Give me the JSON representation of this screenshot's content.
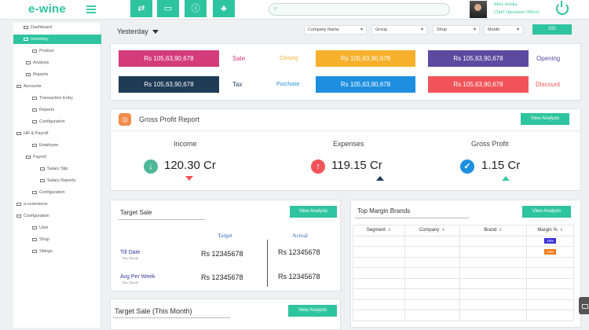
{
  "app": {
    "logo": "e-wine"
  },
  "topbar": {
    "search_placeholder": "",
    "user_name": "Miss Aviska",
    "user_role": "Chief Operation Officer",
    "icons": [
      "swap-icon",
      "monitor-icon",
      "info-icon",
      "bell-icon"
    ]
  },
  "sidebar": {
    "items": [
      {
        "label": "Dashboard"
      },
      {
        "label": "Inventory",
        "active": true
      },
      {
        "label": "Product"
      },
      {
        "label": "Analysis"
      },
      {
        "label": "Reports"
      },
      {
        "label": "Accounts"
      },
      {
        "label": "Transaction Entry"
      },
      {
        "label": "Reports"
      },
      {
        "label": "Configuration"
      },
      {
        "label": "HR & Payroll"
      },
      {
        "label": "Employee"
      },
      {
        "label": "Payroll"
      },
      {
        "label": "Salary Slip"
      },
      {
        "label": "Salary Reports"
      },
      {
        "label": "Configuration"
      },
      {
        "label": "e-commerce"
      },
      {
        "label": "Configuration"
      },
      {
        "label": "User"
      },
      {
        "label": "Shop"
      },
      {
        "label": "Sttings"
      }
    ]
  },
  "filters": {
    "period": "Yesterday",
    "company": "Company Name",
    "group": "Group",
    "shop": "Shop",
    "month": "Month",
    "go": "GO"
  },
  "kpis": [
    {
      "value": "Rs 105,63,90,678",
      "label": "Sale",
      "color": "#d43b7b"
    },
    {
      "value": "Rs 105,63,90,678",
      "label": "Closing",
      "color": "#f7b02b"
    },
    {
      "value": "Rs 105,63,90,678",
      "label": "Opening",
      "color": "#5b4aa0"
    },
    {
      "value": "Rs 105,63,90,678",
      "label": "Tax",
      "color": "#1f3b56"
    },
    {
      "value": "Rs 105,63,90,678",
      "label": "Purchase",
      "color": "#1e8fe0"
    },
    {
      "value": "Rs 105,63,90,678",
      "label": "Discount",
      "color": "#f0545a"
    }
  ],
  "gross_profit": {
    "title": "Gross Profit Report",
    "view_analysis": "View Analysis",
    "metrics": [
      {
        "label": "Income",
        "value": "120.30 Cr",
        "color": "#4fb896"
      },
      {
        "label": "Expenses",
        "value": "119.15 Cr",
        "color": "#f0545a"
      },
      {
        "label": "Gross Profit",
        "value": "1.15 Cr",
        "color": "#1e8fe0"
      }
    ]
  },
  "target_sale": {
    "title": "Target Sale",
    "view_analysis": "View Analysis",
    "col_target": "Target",
    "col_actual": "Actual",
    "rows": [
      {
        "label": "Till Date",
        "sub": "This Month",
        "target": "Rs 12345678",
        "actual": "Rs 12345678"
      },
      {
        "label": "Avg Per Week",
        "sub": "This Month",
        "target": "Rs 12345678",
        "actual": "Rs 12345678"
      }
    ]
  },
  "target_sale_month": {
    "title": "Target  Sale (This Month)",
    "view_analysis": "View Analysis"
  },
  "top_margin": {
    "title": "Top Margin Brands",
    "view_analysis": "View Analysis",
    "columns": [
      "Segment",
      "Company",
      "Brand",
      "Margin %"
    ],
    "badges": [
      {
        "text": "15%",
        "color": "#3b2fd9"
      },
      {
        "text": "14%",
        "color": "#f07b1c"
      }
    ]
  }
}
